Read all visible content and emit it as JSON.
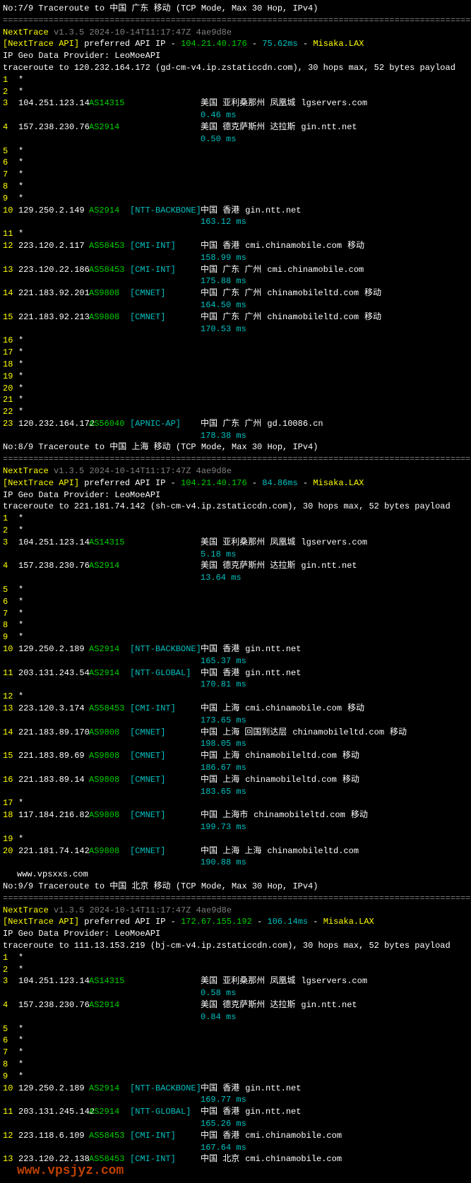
{
  "traces": [
    {
      "header": "No:7/9 Traceroute to 中国 广东 移动 (TCP Mode, Max 30 Hop, IPv4)",
      "separator": "============================================================================================",
      "app_line": {
        "name": "NextTrace",
        "meta": "v1.3.5 2024-10-14T11:17:47Z 4ae9d8e"
      },
      "api_line": {
        "prefix": "[NextTrace API]",
        "mid": " preferred API IP - ",
        "ip": "104.21.40.176",
        "sep": " - ",
        "rtt": "75.62ms",
        "sep2": " - ",
        "loc": "Misaka.LAX"
      },
      "provider": "IP Geo Data Provider: LeoMoeAPI",
      "target": "traceroute to 120.232.164.172 (gd-cm-v4.ip.zstaticcdn.com), 30 hops max, 52 bytes payload",
      "hops": [
        {
          "n": "1",
          "star": "*"
        },
        {
          "n": "2",
          "star": "*"
        },
        {
          "n": "3",
          "ip": "104.251.123.14",
          "asn": "AS14315",
          "tag": "",
          "loc": "美国 亚利桑那州 凤凰城",
          "host": "lgservers.com",
          "rtt": "0.46 ms"
        },
        {
          "n": "4",
          "ip": "157.238.230.76",
          "asn": "AS2914",
          "tag": "",
          "loc": "美国 德克萨斯州 达拉斯",
          "host": "gin.ntt.net",
          "rtt": "0.50 ms"
        },
        {
          "n": "5",
          "star": "*"
        },
        {
          "n": "6",
          "star": "*"
        },
        {
          "n": "7",
          "star": "*"
        },
        {
          "n": "8",
          "star": "*"
        },
        {
          "n": "9",
          "star": "*"
        },
        {
          "n": "10",
          "ip": "129.250.2.149",
          "asn": "AS2914",
          "tag": "[NTT-BACKBONE]",
          "loc": "中国 香港",
          "host": "gin.ntt.net",
          "rtt": "163.12 ms"
        },
        {
          "n": "11",
          "star": "*"
        },
        {
          "n": "12",
          "ip": "223.120.2.117",
          "asn": "AS58453",
          "tag": "[CMI-INT]",
          "loc": "中国 香港",
          "host": "cmi.chinamobile.com",
          "ext": "移动",
          "rtt": "158.99 ms"
        },
        {
          "n": "13",
          "ip": "223.120.22.186",
          "asn": "AS58453",
          "tag": "[CMI-INT]",
          "loc": "中国 广东 广州",
          "host": "cmi.chinamobile.com",
          "rtt": "175.88 ms"
        },
        {
          "n": "14",
          "ip": "221.183.92.201",
          "asn": "AS9808",
          "tag": "[CMNET]",
          "loc": "中国 广东 广州",
          "host": "chinamobileltd.com",
          "ext": "移动",
          "rtt": "164.50 ms"
        },
        {
          "n": "15",
          "ip": "221.183.92.213",
          "asn": "AS9808",
          "tag": "[CMNET]",
          "loc": "中国 广东 广州",
          "host": "chinamobileltd.com",
          "ext": "移动",
          "rtt": "170.53 ms"
        },
        {
          "n": "16",
          "star": "*"
        },
        {
          "n": "17",
          "star": "*"
        },
        {
          "n": "18",
          "star": "*"
        },
        {
          "n": "19",
          "star": "*"
        },
        {
          "n": "20",
          "star": "*"
        },
        {
          "n": "21",
          "star": "*"
        },
        {
          "n": "22",
          "star": "*"
        },
        {
          "n": "23",
          "ip": "120.232.164.172",
          "asn": "AS56040",
          "tag": "[APNIC-AP]",
          "loc": "中国 广东 广州",
          "host": "gd.10086.cn",
          "rtt": "178.38 ms"
        }
      ]
    },
    {
      "header": "No:8/9 Traceroute to 中国 上海 移动 (TCP Mode, Max 30 Hop, IPv4)",
      "separator": "============================================================================================",
      "app_line": {
        "name": "NextTrace",
        "meta": "v1.3.5 2024-10-14T11:17:47Z 4ae9d8e"
      },
      "api_line": {
        "prefix": "[NextTrace API]",
        "mid": " preferred API IP - ",
        "ip": "104.21.40.176",
        "sep": " - ",
        "rtt": "84.86ms",
        "sep2": " - ",
        "loc": "Misaka.LAX"
      },
      "provider": "IP Geo Data Provider: LeoMoeAPI",
      "target": "traceroute to 221.181.74.142 (sh-cm-v4.ip.zstaticcdn.com), 30 hops max, 52 bytes payload",
      "hops": [
        {
          "n": "1",
          "star": "*"
        },
        {
          "n": "2",
          "star": "*"
        },
        {
          "n": "3",
          "ip": "104.251.123.14",
          "asn": "AS14315",
          "tag": "",
          "loc": "美国 亚利桑那州 凤凰城",
          "host": "lgservers.com",
          "rtt": "5.18 ms"
        },
        {
          "n": "4",
          "ip": "157.238.230.76",
          "asn": "AS2914",
          "tag": "",
          "loc": "美国 德克萨斯州 达拉斯",
          "host": "gin.ntt.net",
          "rtt": "13.64 ms"
        },
        {
          "n": "5",
          "star": "*"
        },
        {
          "n": "6",
          "star": "*"
        },
        {
          "n": "7",
          "star": "*"
        },
        {
          "n": "8",
          "star": "*"
        },
        {
          "n": "9",
          "star": "*"
        },
        {
          "n": "10",
          "ip": "129.250.2.189",
          "asn": "AS2914",
          "tag": "[NTT-BACKBONE]",
          "loc": "中国 香港",
          "host": "gin.ntt.net",
          "rtt": "165.37 ms"
        },
        {
          "n": "11",
          "ip": "203.131.243.54",
          "asn": "AS2914",
          "tag": "[NTT-GLOBAL]",
          "loc": "中国 香港",
          "host": "gin.ntt.net",
          "rtt": "170.81 ms"
        },
        {
          "n": "12",
          "star": "*"
        },
        {
          "n": "13",
          "ip": "223.120.3.174",
          "asn": "AS58453",
          "tag": "[CMI-INT]",
          "loc": "中国 上海",
          "host": "cmi.chinamobile.com",
          "ext": "移动",
          "rtt": "173.65 ms"
        },
        {
          "n": "14",
          "ip": "221.183.89.170",
          "asn": "AS9808",
          "tag": "[CMNET]",
          "loc": "中国 上海  回国到达层",
          "host": "chinamobileltd.com",
          "ext": "移动",
          "rtt": "198.05 ms"
        },
        {
          "n": "15",
          "ip": "221.183.89.69",
          "asn": "AS9808",
          "tag": "[CMNET]",
          "loc": "中国 上海",
          "host": "chinamobileltd.com",
          "ext": "移动",
          "rtt": "186.67 ms"
        },
        {
          "n": "16",
          "ip": "221.183.89.14",
          "asn": "AS9808",
          "tag": "[CMNET]",
          "loc": "中国 上海",
          "host": "chinamobileltd.com",
          "ext": "移动",
          "rtt": "183.65 ms"
        },
        {
          "n": "17",
          "star": "*"
        },
        {
          "n": "18",
          "ip": "117.184.216.82",
          "asn": "AS9808",
          "tag": "[CMNET]",
          "loc": "中国 上海市",
          "host": "chinamobileltd.com",
          "ext": "移动",
          "rtt": "199.73 ms"
        },
        {
          "n": "19",
          "star": "*"
        },
        {
          "n": "20",
          "ip": "221.181.74.142",
          "asn": "AS9808",
          "tag": "[CMNET]",
          "loc": "中国 上海 上海",
          "host": "chinamobileltd.com",
          "rtt": "190.88 ms"
        }
      ],
      "watermark": "www.vpsxxs.com"
    },
    {
      "header": "No:9/9 Traceroute to 中国 北京 移动 (TCP Mode, Max 30 Hop, IPv4)",
      "separator": "============================================================================================",
      "app_line": {
        "name": "NextTrace",
        "meta": "v1.3.5 2024-10-14T11:17:47Z 4ae9d8e"
      },
      "api_line": {
        "prefix": "[NextTrace API]",
        "mid": " preferred API IP - ",
        "ip": "172.67.155.192",
        "sep": " - ",
        "rtt": "106.14ms",
        "sep2": " - ",
        "loc": "Misaka.LAX"
      },
      "provider": "IP Geo Data Provider: LeoMoeAPI",
      "target": "traceroute to 111.13.153.219 (bj-cm-v4.ip.zstaticcdn.com), 30 hops max, 52 bytes payload",
      "hops": [
        {
          "n": "1",
          "star": "*"
        },
        {
          "n": "2",
          "star": "*"
        },
        {
          "n": "3",
          "ip": "104.251.123.14",
          "asn": "AS14315",
          "tag": "",
          "loc": "美国 亚利桑那州 凤凰城",
          "host": "lgservers.com",
          "rtt": "0.58 ms"
        },
        {
          "n": "4",
          "ip": "157.238.230.76",
          "asn": "AS2914",
          "tag": "",
          "loc": "美国 德克萨斯州 达拉斯",
          "host": "gin.ntt.net",
          "rtt": "0.84 ms"
        },
        {
          "n": "5",
          "star": "*"
        },
        {
          "n": "6",
          "star": "*"
        },
        {
          "n": "7",
          "star": "*"
        },
        {
          "n": "8",
          "star": "*"
        },
        {
          "n": "9",
          "star": "*"
        },
        {
          "n": "10",
          "ip": "129.250.2.189",
          "asn": "AS2914",
          "tag": "[NTT-BACKBONE]",
          "loc": "中国 香港",
          "host": "gin.ntt.net",
          "rtt": "169.77 ms"
        },
        {
          "n": "11",
          "ip": "203.131.245.142",
          "asn": "AS2914",
          "tag": "[NTT-GLOBAL]",
          "loc": "中国 香港",
          "host": "gin.ntt.net",
          "rtt": "165.26 ms"
        },
        {
          "n": "12",
          "ip": "223.118.6.109",
          "asn": "AS58453",
          "tag": "[CMI-INT]",
          "loc": "中国 香港",
          "host": "cmi.chinamobile.com",
          "rtt": "167.64 ms"
        },
        {
          "n": "13",
          "ip": "223.120.22.138",
          "asn": "AS58453",
          "tag": "[CMI-INT]",
          "loc": "中国 北京",
          "host": "cmi.chinamobile.com",
          "rtt": ""
        }
      ],
      "watermark2": "www.vpsjyz.com"
    }
  ]
}
